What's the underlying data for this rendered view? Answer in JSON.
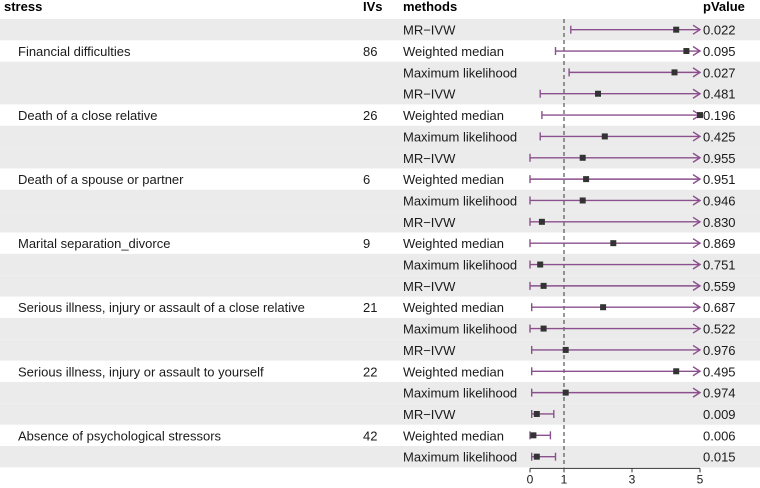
{
  "headers": {
    "stress": "stress",
    "ivs": "IVs",
    "methods": "methods",
    "pvalue": "pValue"
  },
  "colors": {
    "stripe": "#ebebeb",
    "ci": "#8b4f8d",
    "point": "#333333",
    "refline": "#555555",
    "text": "#1a1a1a"
  },
  "groups": [
    {
      "name": "Financial difficulties",
      "ivs": "86"
    },
    {
      "name": "Death of a close relative",
      "ivs": "26"
    },
    {
      "name": "Death of a spouse or partner",
      "ivs": "6"
    },
    {
      "name": "Marital separation_divorce",
      "ivs": "9"
    },
    {
      "name": "Serious illness, injury or assault of a close relative",
      "ivs": "21"
    },
    {
      "name": "Serious illness, injury or assault to yourself",
      "ivs": "22"
    },
    {
      "name": "Absence of psychological stressors",
      "ivs": "42"
    }
  ],
  "rows": [
    {
      "group": 0,
      "method": "MR−IVW",
      "est": 4.3,
      "lo": 1.2,
      "hi": 5.0,
      "arrow": true,
      "pvalue": "0.022"
    },
    {
      "group": 0,
      "method": "Weighted median",
      "est": 4.6,
      "lo": 0.75,
      "hi": 5.0,
      "arrow": true,
      "pvalue": "0.095"
    },
    {
      "group": 0,
      "method": "Maximum likelihood",
      "est": 4.25,
      "lo": 1.15,
      "hi": 5.0,
      "arrow": true,
      "pvalue": "0.027"
    },
    {
      "group": 1,
      "method": "MR−IVW",
      "est": 2.0,
      "lo": 0.3,
      "hi": 5.0,
      "arrow": true,
      "pvalue": "0.481"
    },
    {
      "group": 1,
      "method": "Weighted median",
      "est": 5.0,
      "lo": 0.35,
      "hi": 5.0,
      "arrow": true,
      "pvalue": "0.196"
    },
    {
      "group": 1,
      "method": "Maximum likelihood",
      "est": 2.2,
      "lo": 0.3,
      "hi": 5.0,
      "arrow": true,
      "pvalue": "0.425"
    },
    {
      "group": 2,
      "method": "MR−IVW",
      "est": 1.55,
      "lo": 0.0,
      "hi": 5.0,
      "arrow": true,
      "pvalue": "0.955"
    },
    {
      "group": 2,
      "method": "Weighted median",
      "est": 1.65,
      "lo": 0.0,
      "hi": 5.0,
      "arrow": true,
      "pvalue": "0.951"
    },
    {
      "group": 2,
      "method": "Maximum likelihood",
      "est": 1.55,
      "lo": 0.0,
      "hi": 5.0,
      "arrow": true,
      "pvalue": "0.946"
    },
    {
      "group": 3,
      "method": "MR−IVW",
      "est": 0.35,
      "lo": 0.0,
      "hi": 5.0,
      "arrow": true,
      "pvalue": "0.830"
    },
    {
      "group": 3,
      "method": "Weighted median",
      "est": 2.45,
      "lo": 0.0,
      "hi": 5.0,
      "arrow": true,
      "pvalue": "0.869"
    },
    {
      "group": 3,
      "method": "Maximum likelihood",
      "est": 0.3,
      "lo": 0.0,
      "hi": 5.0,
      "arrow": true,
      "pvalue": "0.751"
    },
    {
      "group": 4,
      "method": "MR−IVW",
      "est": 0.4,
      "lo": 0.0,
      "hi": 5.0,
      "arrow": true,
      "pvalue": "0.559"
    },
    {
      "group": 4,
      "method": "Weighted median",
      "est": 2.15,
      "lo": 0.05,
      "hi": 5.0,
      "arrow": true,
      "pvalue": "0.687"
    },
    {
      "group": 4,
      "method": "Maximum likelihood",
      "est": 0.4,
      "lo": 0.0,
      "hi": 5.0,
      "arrow": true,
      "pvalue": "0.522"
    },
    {
      "group": 5,
      "method": "MR−IVW",
      "est": 1.05,
      "lo": 0.05,
      "hi": 5.0,
      "arrow": true,
      "pvalue": "0.976"
    },
    {
      "group": 5,
      "method": "Weighted median",
      "est": 4.3,
      "lo": 0.05,
      "hi": 5.0,
      "arrow": true,
      "pvalue": "0.495"
    },
    {
      "group": 5,
      "method": "Maximum likelihood",
      "est": 1.05,
      "lo": 0.05,
      "hi": 5.0,
      "arrow": true,
      "pvalue": "0.974"
    },
    {
      "group": 6,
      "method": "MR−IVW",
      "est": 0.2,
      "lo": 0.05,
      "hi": 0.7,
      "arrow": false,
      "pvalue": "0.009"
    },
    {
      "group": 6,
      "method": "Weighted median",
      "est": 0.1,
      "lo": 0.0,
      "hi": 0.6,
      "arrow": false,
      "pvalue": "0.006"
    },
    {
      "group": 6,
      "method": "Maximum likelihood",
      "est": 0.2,
      "lo": 0.05,
      "hi": 0.75,
      "arrow": false,
      "pvalue": "0.015"
    }
  ],
  "chart_data": {
    "type": "forest",
    "xlim": [
      0,
      5
    ],
    "xticks": [
      0,
      1,
      3,
      5
    ],
    "xtick_labels": [
      "0",
      "1",
      "3",
      "5"
    ],
    "reference_line": 1,
    "xlabel": "",
    "ylabel": "",
    "title": ""
  }
}
